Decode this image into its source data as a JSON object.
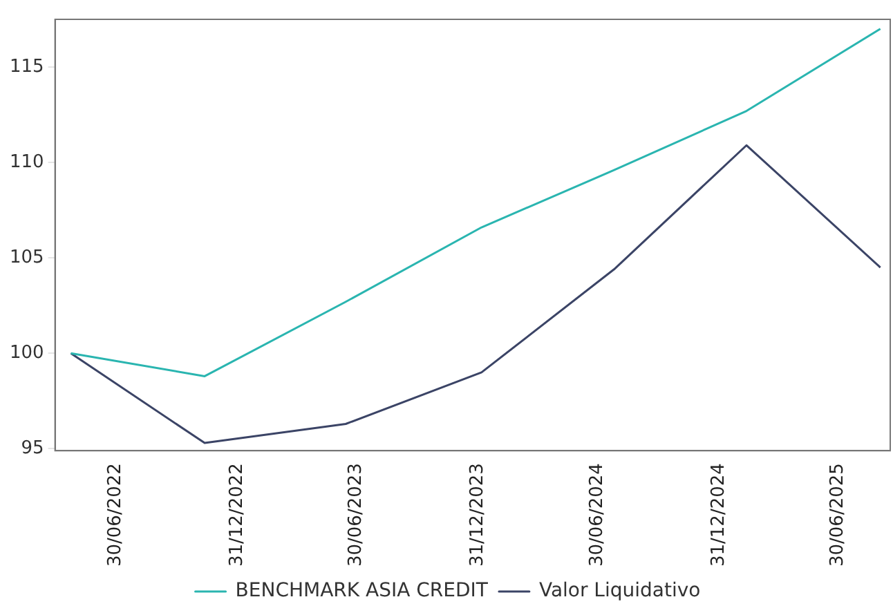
{
  "chart_data": {
    "type": "line",
    "x": [
      "2022-04-23",
      "2022-11-12",
      "2023-06-14",
      "2024-01-06",
      "2024-07-25",
      "2025-02-11",
      "2025-09-02"
    ],
    "series": [
      {
        "name": "BENCHMARK ASIA CREDIT",
        "color": "#2ab5b0",
        "values": [
          100,
          98.8,
          102.7,
          106.6,
          109.6,
          112.7,
          117.0
        ]
      },
      {
        "name": "Valor Liquidativo",
        "color": "#3b4466",
        "values": [
          100,
          95.3,
          96.3,
          99.0,
          104.4,
          110.9,
          104.5
        ]
      }
    ],
    "xlim": [
      "2022-03-30",
      "2025-09-17"
    ],
    "xticks": [
      {
        "value": "2022-06-30",
        "label": "30/06/2022"
      },
      {
        "value": "2022-12-31",
        "label": "31/12/2022"
      },
      {
        "value": "2023-06-30",
        "label": "30/06/2023"
      },
      {
        "value": "2023-12-31",
        "label": "31/12/2023"
      },
      {
        "value": "2024-06-30",
        "label": "30/06/2024"
      },
      {
        "value": "2024-12-31",
        "label": "31/12/2024"
      },
      {
        "value": "2025-06-30",
        "label": "30/06/2025"
      }
    ],
    "ylim": [
      94.9,
      117.5
    ],
    "yticks": [
      95,
      100,
      105,
      110,
      115
    ],
    "grid": false,
    "legend": "bottom",
    "marker": "none",
    "line_style": "solid"
  }
}
